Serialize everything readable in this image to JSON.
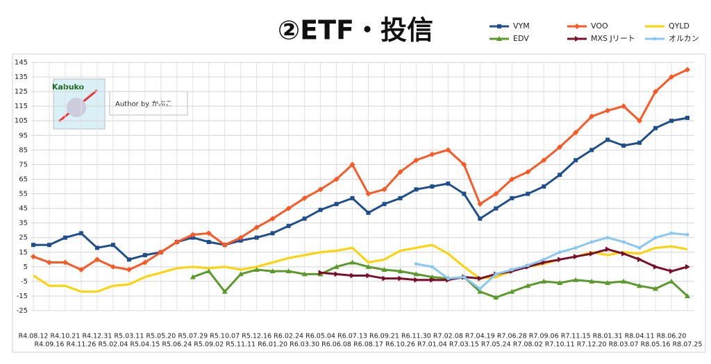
{
  "chart_data": {
    "type": "line",
    "title": "②ETF・投信",
    "badge": "Kabuko",
    "author": "Author by かぶこ",
    "categories": [
      "R4.08.12",
      "R4.09.16",
      "R4.10.21",
      "R4.11.26",
      "R4.12.31",
      "R5.02.04",
      "R5.03.11",
      "R5.04.15",
      "R5.05.20",
      "R5.06.24",
      "R5.07.29",
      "R5.09.02",
      "R5.10.07",
      "R5.11.11",
      "R5.12.16",
      "R6.01.20",
      "R6.02.24",
      "R6.03.30",
      "R6.05.04",
      "R6.06.08",
      "R6.07.13",
      "R6.08.17",
      "R6.09.21",
      "R6.10.26",
      "R6.11.30",
      "R7.01.04",
      "R7.02.08",
      "R7.03.15",
      "R7.04.19",
      "R7.05.24",
      "R7.06.28",
      "R7.08.02",
      "R7.09.06",
      "R7.10.11",
      "R7.11.15",
      "R7.12.20",
      "R8.01.31",
      "R8.03.07",
      "R8.04.11",
      "R8.05.16",
      "R8.06.20",
      "R8.07.25"
    ],
    "series": [
      {
        "name": "VYM",
        "color": "#1f4e8c",
        "marker": "square",
        "values": [
          20,
          20,
          25,
          28,
          18,
          20,
          10,
          13,
          15,
          22,
          25,
          22,
          20,
          23,
          25,
          28,
          33,
          38,
          44,
          48,
          52,
          42,
          48,
          52,
          58,
          60,
          62,
          55,
          38,
          45,
          52,
          55,
          60,
          68,
          78,
          85,
          92,
          88,
          90,
          100,
          105,
          107
        ]
      },
      {
        "name": "VOO",
        "color": "#ff5722",
        "marker": "diamond",
        "values": [
          12,
          8,
          8,
          3,
          10,
          5,
          3,
          8,
          15,
          22,
          27,
          28,
          20,
          25,
          32,
          38,
          45,
          52,
          58,
          65,
          75,
          55,
          58,
          70,
          78,
          82,
          85,
          75,
          48,
          55,
          65,
          70,
          78,
          87,
          97,
          108,
          112,
          115,
          105,
          125,
          135,
          140
        ]
      },
      {
        "name": "QYLD",
        "color": "#ffd200",
        "marker": "none",
        "values": [
          -1,
          -8,
          -8,
          -12,
          -12,
          -8,
          -7,
          -2,
          1,
          4,
          5,
          4,
          5,
          3,
          5,
          8,
          11,
          13,
          15,
          16,
          18,
          8,
          10,
          16,
          18,
          20,
          14,
          5,
          -3,
          -2,
          2,
          5,
          7,
          10,
          12,
          15,
          13,
          15,
          14,
          18,
          19,
          17
        ]
      },
      {
        "name": "EDV",
        "color": "#5a9a2a",
        "marker": "triangle",
        "values": [
          null,
          null,
          null,
          null,
          null,
          null,
          null,
          null,
          null,
          null,
          -2,
          2,
          -12,
          0,
          3,
          2,
          2,
          0,
          0,
          5,
          8,
          5,
          3,
          2,
          0,
          -2,
          -3,
          -2,
          -12,
          -16,
          -12,
          -8,
          -5,
          -6,
          -4,
          -5,
          -6,
          -5,
          -8,
          -10,
          -5,
          -15
        ]
      },
      {
        "name": "MXS Jリート",
        "color": "#7b0f2a",
        "marker": "arrow",
        "values": [
          null,
          null,
          null,
          null,
          null,
          null,
          null,
          null,
          null,
          null,
          null,
          null,
          null,
          null,
          null,
          null,
          null,
          null,
          1,
          0,
          -1,
          -1,
          -3,
          -3,
          -4,
          -4,
          -4,
          -2,
          -3,
          0,
          2,
          5,
          8,
          10,
          12,
          14,
          17,
          14,
          10,
          5,
          2,
          5
        ]
      },
      {
        "name": "オルカン",
        "color": "#87c8f5",
        "marker": "star",
        "values": [
          null,
          null,
          null,
          null,
          null,
          null,
          null,
          null,
          null,
          null,
          null,
          null,
          null,
          null,
          null,
          null,
          null,
          null,
          null,
          null,
          null,
          null,
          null,
          null,
          7,
          5,
          -3,
          -2,
          -10,
          0,
          3,
          6,
          10,
          15,
          18,
          22,
          25,
          22,
          18,
          25,
          28,
          27
        ]
      }
    ],
    "ylim": [
      -25,
      145
    ],
    "yticks": [
      -25,
      -15,
      -5,
      5,
      15,
      25,
      35,
      45,
      55,
      65,
      75,
      85,
      95,
      105,
      115,
      125,
      135,
      145
    ],
    "grid": true
  }
}
